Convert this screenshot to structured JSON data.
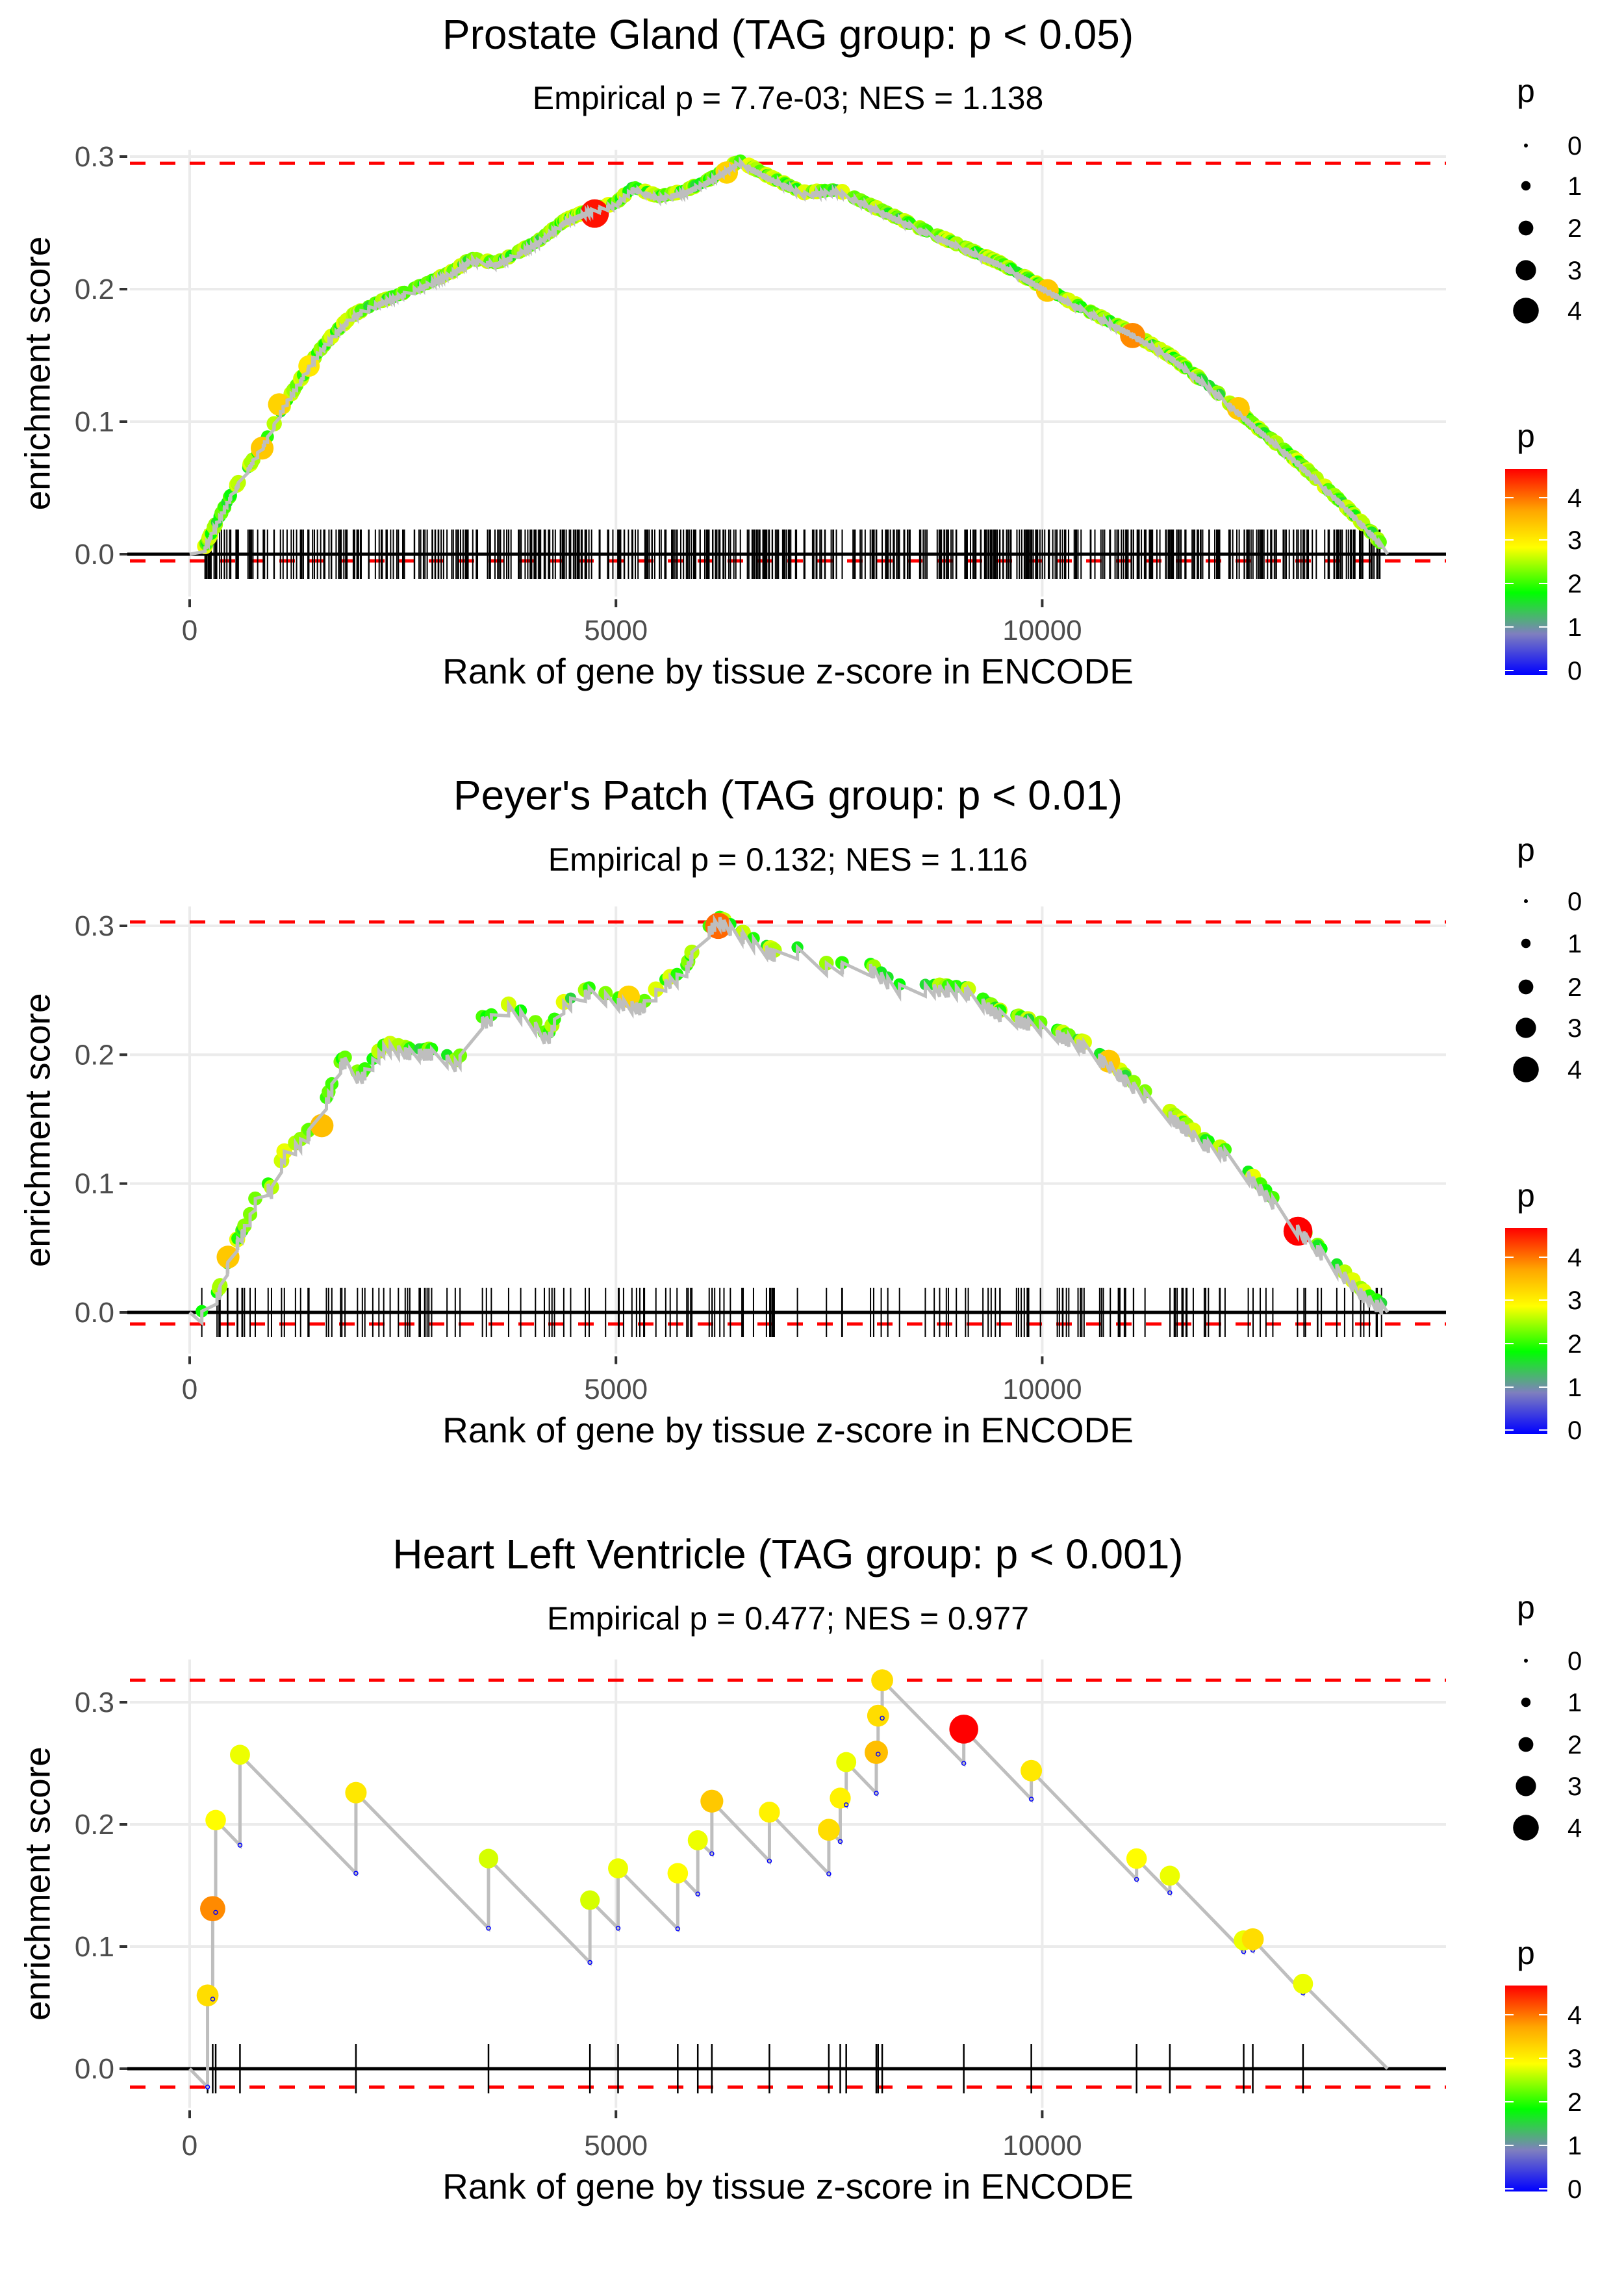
{
  "figure": {
    "x_axis_title": "Rank of gene by tissue z-score in ENCODE",
    "y_axis_title": "enrichment score",
    "legend_size_title": "p",
    "legend_color_title": "p",
    "size_legend_values": [
      "0",
      "1",
      "2",
      "3",
      "4"
    ],
    "color_legend_values": [
      "4",
      "3",
      "2",
      "1",
      "0"
    ],
    "colors": {
      "curve": "#bebebe",
      "threshold_dashed": "#ff0000",
      "zero_line": "#000000",
      "rug": "#000000",
      "gridline": "#ebebeb",
      "gradient_stops": [
        "#0000ff",
        "#7f7fbf",
        "#00ff00",
        "#ffff00",
        "#ffa500",
        "#ff0000"
      ]
    }
  },
  "chart_data": [
    {
      "type": "scatter",
      "title": "Prostate Gland (TAG group: p < 0.05)",
      "subtitle": "Empirical p = 7.7e-03; NES = 1.138",
      "xlabel": "Rank of gene by tissue z-score in ENCODE",
      "ylabel": "enrichment score",
      "xlim": [
        -1000,
        14900
      ],
      "ylim": [
        -0.032,
        0.305
      ],
      "xticks": [
        0,
        5000,
        10000
      ],
      "xtick_labels": [
        "0",
        "5000",
        "10000"
      ],
      "yticks": [
        0.0,
        0.1,
        0.2,
        0.3
      ],
      "ytick_labels": [
        "0.0",
        "0.1",
        "0.2",
        "0.3"
      ],
      "max_es_line": 0.295,
      "min_es_line": -0.005,
      "grid": true,
      "legend": "right",
      "n_genes": 14050,
      "rug_density": "dense",
      "curve": [
        [
          0,
          0
        ],
        [
          150,
          0.0
        ],
        [
          300,
          0.02
        ],
        [
          500,
          0.045
        ],
        [
          700,
          0.065
        ],
        [
          900,
          0.085
        ],
        [
          1100,
          0.11
        ],
        [
          1300,
          0.13
        ],
        [
          1500,
          0.15
        ],
        [
          1700,
          0.165
        ],
        [
          1900,
          0.178
        ],
        [
          2200,
          0.188
        ],
        [
          2500,
          0.195
        ],
        [
          2800,
          0.203
        ],
        [
          3100,
          0.212
        ],
        [
          3300,
          0.221
        ],
        [
          3600,
          0.218
        ],
        [
          3800,
          0.224
        ],
        [
          4100,
          0.235
        ],
        [
          4400,
          0.25
        ],
        [
          4700,
          0.258
        ],
        [
          5000,
          0.263
        ],
        [
          5200,
          0.275
        ],
        [
          5500,
          0.268
        ],
        [
          5800,
          0.272
        ],
        [
          6100,
          0.281
        ],
        [
          6450,
          0.295
        ],
        [
          6800,
          0.283
        ],
        [
          7200,
          0.271
        ],
        [
          7600,
          0.273
        ],
        [
          8000,
          0.261
        ],
        [
          8500,
          0.246
        ],
        [
          9000,
          0.232
        ],
        [
          9500,
          0.218
        ],
        [
          10000,
          0.2
        ],
        [
          10500,
          0.183
        ],
        [
          11000,
          0.167
        ],
        [
          11500,
          0.148
        ],
        [
          12000,
          0.123
        ],
        [
          12500,
          0.095
        ],
        [
          13000,
          0.068
        ],
        [
          13500,
          0.038
        ],
        [
          13900,
          0.012
        ],
        [
          14050,
          0.0
        ]
      ],
      "highlight_points": [
        {
          "rank": 4750,
          "es": 0.257,
          "p": 4.7
        },
        {
          "rank": 6300,
          "es": 0.288,
          "p": 3.4
        },
        {
          "rank": 10060,
          "es": 0.199,
          "p": 3.5
        },
        {
          "rank": 11060,
          "es": 0.165,
          "p": 4.0
        },
        {
          "rank": 12300,
          "es": 0.11,
          "p": 3.5
        },
        {
          "rank": 850,
          "es": 0.08,
          "p": 3.5
        },
        {
          "rank": 1050,
          "es": 0.113,
          "p": 3.4
        },
        {
          "rank": 1400,
          "es": 0.142,
          "p": 3.2
        }
      ]
    },
    {
      "type": "scatter",
      "title": "Peyer's Patch (TAG group: p < 0.01)",
      "subtitle": "Empirical p = 0.132; NES = 1.116",
      "xlabel": "Rank of gene by tissue z-score in ENCODE",
      "ylabel": "enrichment score",
      "xlim": [
        -1000,
        14900
      ],
      "ylim": [
        -0.032,
        0.315
      ],
      "xticks": [
        0,
        5000,
        10000
      ],
      "xtick_labels": [
        "0",
        "5000",
        "10000"
      ],
      "yticks": [
        0.0,
        0.1,
        0.2,
        0.3
      ],
      "ytick_labels": [
        "0.0",
        "0.1",
        "0.2",
        "0.3"
      ],
      "max_es_line": 0.303,
      "min_es_line": -0.009,
      "grid": true,
      "legend": "right",
      "n_genes": 14050,
      "rug_density": "medium",
      "curve": [
        [
          0,
          0
        ],
        [
          200,
          -0.005
        ],
        [
          350,
          0.015
        ],
        [
          500,
          0.045
        ],
        [
          700,
          0.07
        ],
        [
          850,
          0.1
        ],
        [
          1000,
          0.09
        ],
        [
          1100,
          0.12
        ],
        [
          1300,
          0.13
        ],
        [
          1500,
          0.145
        ],
        [
          1650,
          0.17
        ],
        [
          1800,
          0.195
        ],
        [
          2000,
          0.18
        ],
        [
          2300,
          0.205
        ],
        [
          2600,
          0.2
        ],
        [
          2900,
          0.2
        ],
        [
          3150,
          0.19
        ],
        [
          3300,
          0.225
        ],
        [
          3500,
          0.225
        ],
        [
          3750,
          0.235
        ],
        [
          4000,
          0.225
        ],
        [
          4200,
          0.21
        ],
        [
          4350,
          0.235
        ],
        [
          4700,
          0.248
        ],
        [
          5000,
          0.24
        ],
        [
          5300,
          0.235
        ],
        [
          5600,
          0.255
        ],
        [
          5800,
          0.26
        ],
        [
          5950,
          0.285
        ],
        [
          6200,
          0.303
        ],
        [
          6500,
          0.29
        ],
        [
          6900,
          0.275
        ],
        [
          7200,
          0.28
        ],
        [
          7500,
          0.265
        ],
        [
          7900,
          0.27
        ],
        [
          8300,
          0.25
        ],
        [
          8700,
          0.25
        ],
        [
          9100,
          0.248
        ],
        [
          9500,
          0.23
        ],
        [
          10000,
          0.22
        ],
        [
          10500,
          0.205
        ],
        [
          10800,
          0.19
        ],
        [
          11000,
          0.178
        ],
        [
          11900,
          0.13
        ],
        [
          12200,
          0.12
        ],
        [
          12700,
          0.085
        ],
        [
          13000,
          0.063
        ],
        [
          13500,
          0.03
        ],
        [
          13800,
          0.01
        ],
        [
          14050,
          0.0
        ]
      ],
      "highlight_points": [
        {
          "rank": 6200,
          "es": 0.3,
          "p": 4.2
        },
        {
          "rank": 13000,
          "es": 0.063,
          "p": 4.8
        },
        {
          "rank": 10780,
          "es": 0.195,
          "p": 3.5
        },
        {
          "rank": 450,
          "es": 0.043,
          "p": 3.5
        },
        {
          "rank": 1550,
          "es": 0.145,
          "p": 3.6
        },
        {
          "rank": 5150,
          "es": 0.245,
          "p": 3.4
        }
      ]
    },
    {
      "type": "scatter",
      "title": "Heart Left Ventricle (TAG group: p < 0.001)",
      "subtitle": "Empirical p = 0.477; NES = 0.977",
      "xlabel": "Rank of gene by tissue z-score in ENCODE",
      "ylabel": "enrichment score",
      "xlim": [
        -1000,
        14900
      ],
      "ylim": [
        -0.032,
        0.335
      ],
      "xticks": [
        0,
        5000,
        10000
      ],
      "xtick_labels": [
        "0",
        "5000",
        "10000"
      ],
      "yticks": [
        0.0,
        0.1,
        0.2,
        0.3
      ],
      "ytick_labels": [
        "0.0",
        "0.1",
        "0.2",
        "0.3"
      ],
      "max_es_line": 0.318,
      "min_es_line": -0.015,
      "grid": true,
      "legend": "right",
      "n_genes": 14050,
      "hits": [
        {
          "rank": 210,
          "low": -0.015,
          "high": 0.06,
          "p": 3.3
        },
        {
          "rank": 270,
          "low": 0.057,
          "high": 0.131,
          "p": 4.0
        },
        {
          "rank": 305,
          "low": 0.128,
          "high": 0.2035,
          "p": 3.0
        },
        {
          "rank": 590,
          "low": 0.183,
          "high": 0.257,
          "p": 2.9
        },
        {
          "rank": 1950,
          "low": 0.16,
          "high": 0.226,
          "p": 3.2
        },
        {
          "rank": 3505,
          "low": 0.115,
          "high": 0.172,
          "p": 2.8
        },
        {
          "rank": 4695,
          "low": 0.087,
          "high": 0.138,
          "p": 2.8
        },
        {
          "rank": 5025,
          "low": 0.115,
          "high": 0.164,
          "p": 2.9
        },
        {
          "rank": 5725,
          "low": 0.1145,
          "high": 0.16,
          "p": 3.0
        },
        {
          "rank": 5960,
          "low": 0.143,
          "high": 0.187,
          "p": 2.9
        },
        {
          "rank": 6125,
          "low": 0.176,
          "high": 0.219,
          "p": 3.5
        },
        {
          "rank": 6800,
          "low": 0.17,
          "high": 0.21,
          "p": 3.1
        },
        {
          "rank": 7497,
          "low": 0.1595,
          "high": 0.1956,
          "p": 3.3
        },
        {
          "rank": 7631,
          "low": 0.186,
          "high": 0.2215,
          "p": 3.1
        },
        {
          "rank": 7701,
          "low": 0.216,
          "high": 0.251,
          "p": 2.9
        },
        {
          "rank": 8054,
          "low": 0.2255,
          "high": 0.259,
          "p": 3.6
        },
        {
          "rank": 8075,
          "low": 0.2575,
          "high": 0.289,
          "p": 3.3
        },
        {
          "rank": 8123,
          "low": 0.287,
          "high": 0.318,
          "p": 3.3
        },
        {
          "rank": 9080,
          "low": 0.25,
          "high": 0.278,
          "p": 4.8
        },
        {
          "rank": 9872,
          "low": 0.2207,
          "high": 0.244,
          "p": 3.2
        },
        {
          "rank": 11107,
          "low": 0.155,
          "high": 0.172,
          "p": 3.0
        },
        {
          "rank": 11497,
          "low": 0.144,
          "high": 0.158,
          "p": 2.9
        },
        {
          "rank": 12363,
          "low": 0.0958,
          "high": 0.105,
          "p": 2.9
        },
        {
          "rank": 12470,
          "low": 0.097,
          "high": 0.106,
          "p": 3.3
        },
        {
          "rank": 13059,
          "low": 0.062,
          "high": 0.0695,
          "p": 2.9
        }
      ],
      "end_point": {
        "rank": 14050,
        "es": 0.0
      }
    }
  ]
}
